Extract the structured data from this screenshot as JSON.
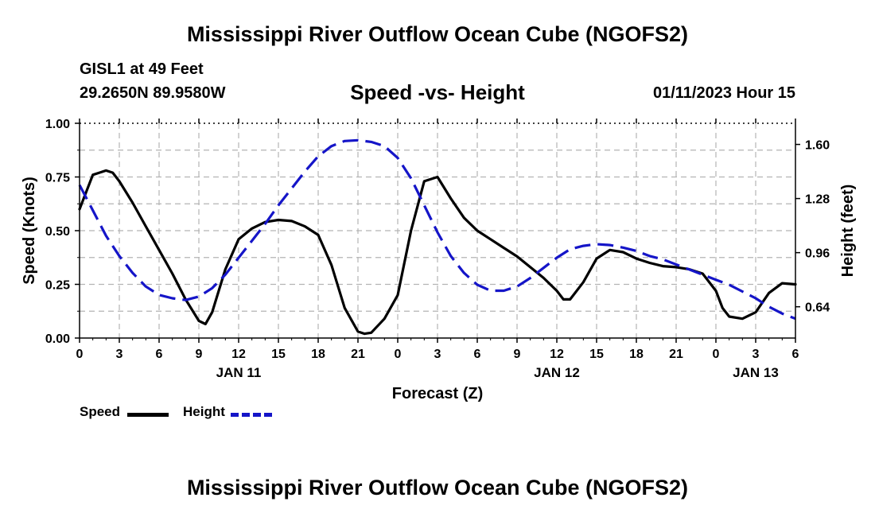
{
  "header": {
    "title": "Mississippi River Outflow Ocean Cube (NGOFS2)",
    "station": "GISL1 at 49 Feet",
    "coords": "29.2650N  89.9580W",
    "subtitle": "Speed -vs- Height",
    "datetime": "01/11/2023 Hour 15"
  },
  "footer": {
    "title": "Mississippi River Outflow Ocean Cube (NGOFS2)"
  },
  "legend": {
    "speed_label": "Speed",
    "height_label": "Height"
  },
  "colors": {
    "speed": "#000000",
    "height": "#1515c8",
    "grid": "#b4b4b4"
  },
  "chart_data": {
    "type": "line",
    "title": "Speed -vs- Height",
    "xlabel": "Forecast (Z)",
    "ylabel": "Speed (Knots)",
    "y2label": "Height (feet)",
    "xlim": [
      0,
      54
    ],
    "ylim": [
      0,
      1.0
    ],
    "y2lim": [
      0.455,
      1.725
    ],
    "x_ticks": [
      0,
      3,
      6,
      9,
      12,
      15,
      18,
      21,
      24,
      27,
      30,
      33,
      36,
      39,
      42,
      45,
      48,
      51,
      54
    ],
    "x_tick_labels": [
      "0",
      "3",
      "6",
      "9",
      "12",
      "15",
      "18",
      "21",
      "0",
      "3",
      "6",
      "9",
      "12",
      "15",
      "18",
      "21",
      "0",
      "3",
      "6"
    ],
    "date_labels": [
      {
        "x": 12,
        "label": "JAN 11"
      },
      {
        "x": 36,
        "label": "JAN 12"
      },
      {
        "x": 51,
        "label": "JAN 13"
      }
    ],
    "y_ticks": [
      0.0,
      0.25,
      0.5,
      0.75,
      1.0
    ],
    "y_tick_labels": [
      "0.00",
      "0.25",
      "0.50",
      "0.75",
      "1.00"
    ],
    "y_minor_ticks": [
      0.125,
      0.375,
      0.625,
      0.875
    ],
    "y2_ticks": [
      0.64,
      0.96,
      1.28,
      1.6
    ],
    "y2_tick_labels": [
      "0.64",
      "0.96",
      "1.28",
      "1.60"
    ],
    "grid": true,
    "series": [
      {
        "name": "Speed",
        "axis": "left",
        "style": "solid",
        "x": [
          0,
          1,
          2,
          2.5,
          3,
          4,
          5,
          6,
          7,
          8,
          9,
          9.5,
          10,
          11,
          12,
          13,
          14,
          15,
          16,
          17,
          18,
          19,
          20,
          21,
          21.5,
          22,
          23,
          24,
          25,
          26,
          27,
          28,
          29,
          30,
          31,
          32,
          33,
          34,
          35,
          36,
          36.5,
          37,
          38,
          39,
          40,
          41,
          42,
          43,
          44,
          45,
          46,
          47,
          48,
          48.5,
          49,
          50,
          51,
          52,
          53,
          54
        ],
        "y": [
          0.6,
          0.76,
          0.78,
          0.77,
          0.73,
          0.63,
          0.52,
          0.41,
          0.3,
          0.18,
          0.08,
          0.065,
          0.12,
          0.32,
          0.46,
          0.51,
          0.54,
          0.55,
          0.545,
          0.52,
          0.48,
          0.34,
          0.14,
          0.03,
          0.02,
          0.025,
          0.09,
          0.2,
          0.5,
          0.73,
          0.75,
          0.65,
          0.56,
          0.5,
          0.46,
          0.42,
          0.38,
          0.33,
          0.28,
          0.22,
          0.18,
          0.18,
          0.26,
          0.37,
          0.41,
          0.4,
          0.37,
          0.35,
          0.335,
          0.33,
          0.32,
          0.3,
          0.22,
          0.14,
          0.1,
          0.09,
          0.12,
          0.21,
          0.255,
          0.25
        ]
      },
      {
        "name": "Height",
        "axis": "right",
        "style": "dashed",
        "x": [
          0,
          1,
          2,
          3,
          4,
          5,
          6,
          7,
          8,
          9,
          10,
          11,
          12,
          13,
          14,
          15,
          16,
          17,
          18,
          19,
          20,
          21,
          22,
          23,
          24,
          25,
          26,
          27,
          28,
          29,
          30,
          31,
          32,
          33,
          34,
          35,
          36,
          37,
          38,
          39,
          40,
          41,
          42,
          43,
          44,
          45,
          46,
          47,
          48,
          49,
          50,
          51,
          52,
          53,
          54
        ],
        "y": [
          1.36,
          1.21,
          1.06,
          0.94,
          0.84,
          0.76,
          0.71,
          0.69,
          0.68,
          0.7,
          0.75,
          0.83,
          0.93,
          1.03,
          1.13,
          1.24,
          1.34,
          1.44,
          1.53,
          1.59,
          1.62,
          1.625,
          1.615,
          1.59,
          1.52,
          1.4,
          1.24,
          1.08,
          0.94,
          0.84,
          0.77,
          0.735,
          0.735,
          0.76,
          0.81,
          0.87,
          0.93,
          0.98,
          1.0,
          1.01,
          1.005,
          0.99,
          0.97,
          0.94,
          0.92,
          0.89,
          0.86,
          0.83,
          0.8,
          0.77,
          0.73,
          0.69,
          0.64,
          0.6,
          0.57
        ]
      }
    ]
  }
}
